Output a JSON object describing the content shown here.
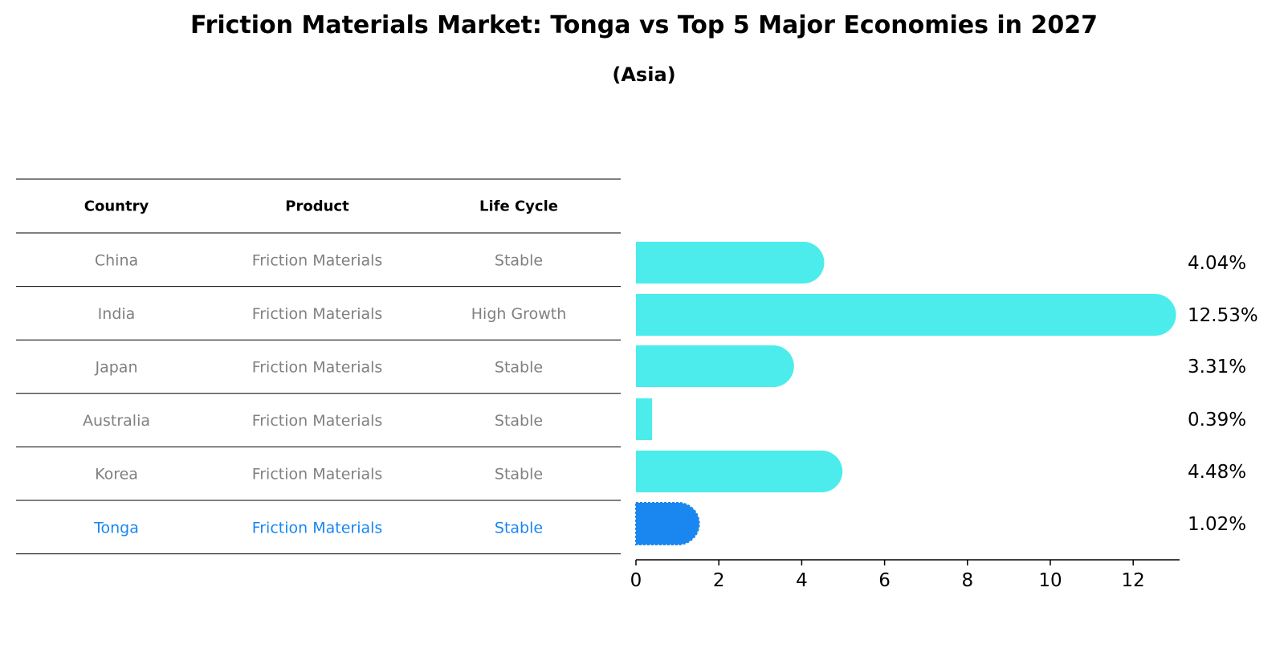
{
  "title": "Friction Materials Market: Tonga vs Top 5 Major Economies in 2027",
  "subtitle": "(Asia)",
  "table": {
    "columns": [
      "Country",
      "Product",
      "Life Cycle"
    ],
    "rows": [
      {
        "country": "China",
        "product": "Friction Materials",
        "life_cycle": "Stable",
        "highlight": false
      },
      {
        "country": "India",
        "product": "Friction Materials",
        "life_cycle": "High Growth",
        "highlight": false
      },
      {
        "country": "Japan",
        "product": "Friction Materials",
        "life_cycle": "Stable",
        "highlight": false
      },
      {
        "country": "Australia",
        "product": "Friction Materials",
        "life_cycle": "Stable",
        "highlight": false
      },
      {
        "country": "Korea",
        "product": "Friction Materials",
        "life_cycle": "Stable",
        "highlight": false
      },
      {
        "country": "Tonga",
        "product": "Friction Materials",
        "life_cycle": "Stable",
        "highlight": true
      }
    ]
  },
  "colors": {
    "bar": "#4cecec",
    "highlight_bar": "#1a86f0",
    "highlight_text": "#1a86f0",
    "row_text": "#808080",
    "header_text": "#000000"
  },
  "chart_data": {
    "type": "bar",
    "orientation": "horizontal",
    "categories": [
      "China",
      "India",
      "Japan",
      "Australia",
      "Korea",
      "Tonga"
    ],
    "values": [
      4.04,
      12.53,
      3.31,
      0.39,
      4.48,
      1.02
    ],
    "value_labels": [
      "4.04%",
      "12.53%",
      "3.31%",
      "0.39%",
      "4.48%",
      "1.02%"
    ],
    "highlight_category": "Tonga",
    "xlim": [
      0,
      13.2
    ],
    "xticks": [
      0,
      2,
      4,
      6,
      8,
      10,
      12
    ],
    "xlabel": "",
    "ylabel": "",
    "grid": false
  }
}
